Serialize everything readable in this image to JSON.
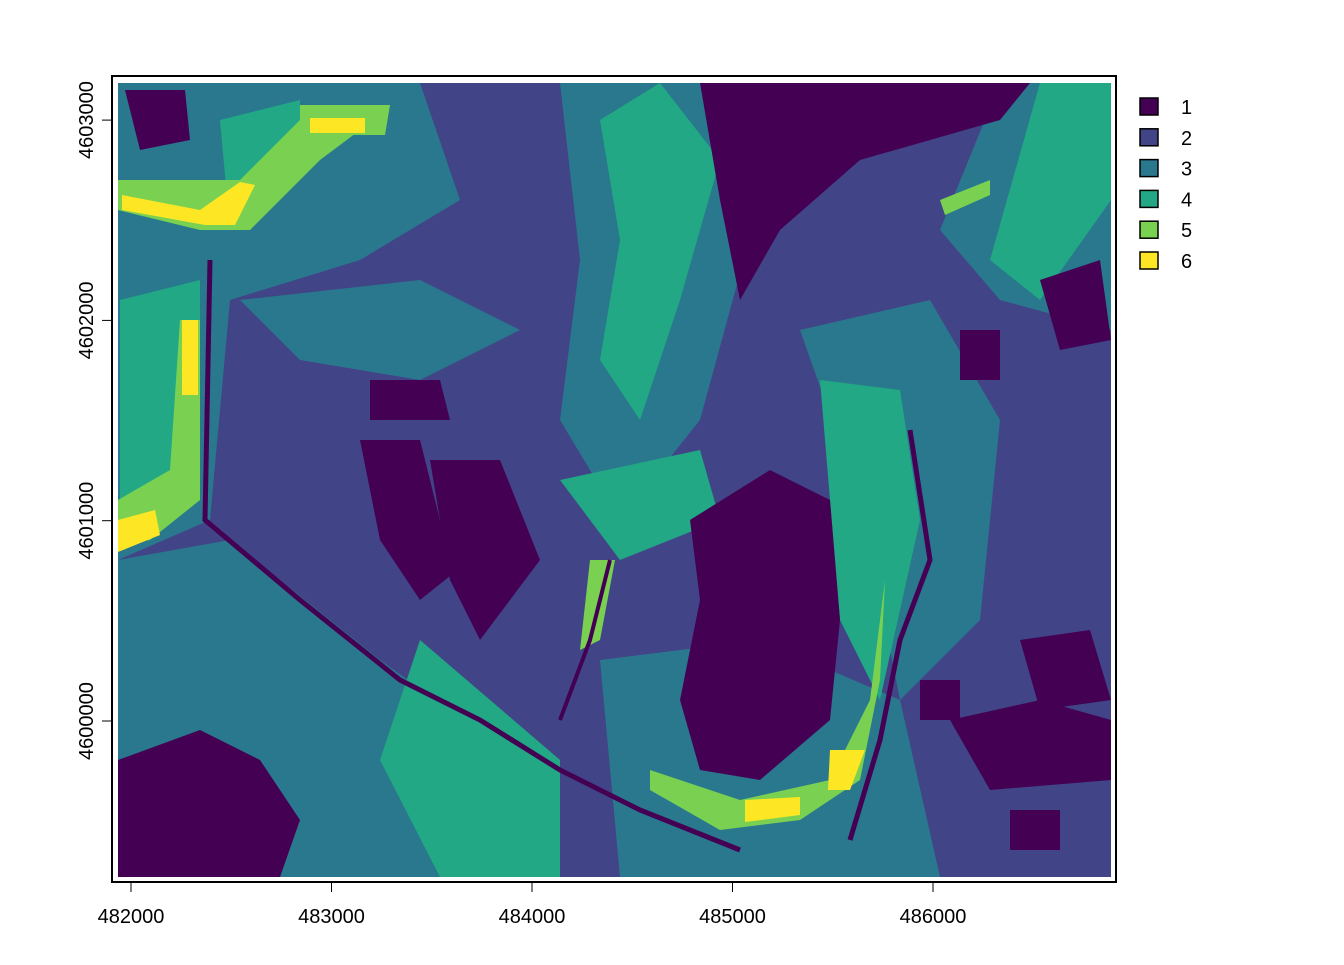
{
  "chart_data": {
    "type": "heatmap",
    "subtype": "categorical-raster",
    "categories": [
      "1",
      "2",
      "3",
      "4",
      "5",
      "6"
    ],
    "colors": {
      "1": "#440154",
      "2": "#414487",
      "3": "#2A788E",
      "4": "#22A884",
      "5": "#7AD151",
      "6": "#FDE725"
    },
    "legend_position": "right",
    "x_ticks": [
      482000,
      483000,
      484000,
      485000,
      486000
    ],
    "x_tick_labels": [
      "482000",
      "483000",
      "484000",
      "485000",
      "486000"
    ],
    "y_ticks": [
      4600000,
      4601000,
      4602000,
      4603000
    ],
    "y_tick_labels": [
      "4600000",
      "4601000",
      "4602000",
      "4603000"
    ],
    "xlim": [
      481935,
      486888
    ],
    "ylim": [
      4599221,
      4603185
    ],
    "grid": false,
    "legend": [
      "1",
      "2",
      "3",
      "4",
      "5",
      "6"
    ]
  }
}
